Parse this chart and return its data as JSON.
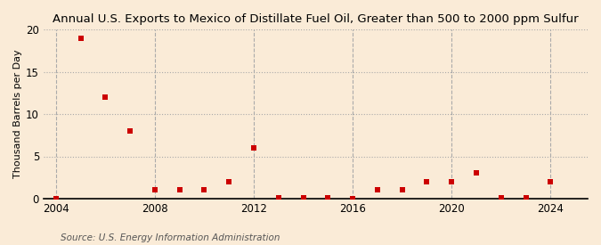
{
  "title": "Annual U.S. Exports to Mexico of Distillate Fuel Oil, Greater than 500 to 2000 ppm Sulfur",
  "ylabel": "Thousand Barrels per Day",
  "source": "Source: U.S. Energy Information Administration",
  "background_color": "#faebd7",
  "marker_color": "#cc0000",
  "years": [
    2004,
    2005,
    2006,
    2007,
    2008,
    2009,
    2010,
    2011,
    2012,
    2013,
    2014,
    2015,
    2016,
    2017,
    2018,
    2019,
    2020,
    2021,
    2022,
    2023,
    2024
  ],
  "values": [
    0.03,
    19.0,
    12.0,
    8.0,
    1.0,
    1.0,
    1.0,
    2.0,
    6.0,
    0.08,
    0.08,
    0.08,
    0.03,
    1.0,
    1.0,
    2.0,
    2.0,
    3.0,
    0.08,
    0.08,
    2.0
  ],
  "xlim": [
    2003.5,
    2025.5
  ],
  "ylim": [
    0,
    20
  ],
  "yticks": [
    0,
    5,
    10,
    15,
    20
  ],
  "xticks": [
    2004,
    2008,
    2012,
    2016,
    2020,
    2024
  ],
  "hgrid_color": "#aaaaaa",
  "vgrid_color": "#aaaaaa",
  "title_fontsize": 9.5,
  "label_fontsize": 8.0,
  "tick_fontsize": 8.5,
  "source_fontsize": 7.5,
  "marker_size": 16
}
